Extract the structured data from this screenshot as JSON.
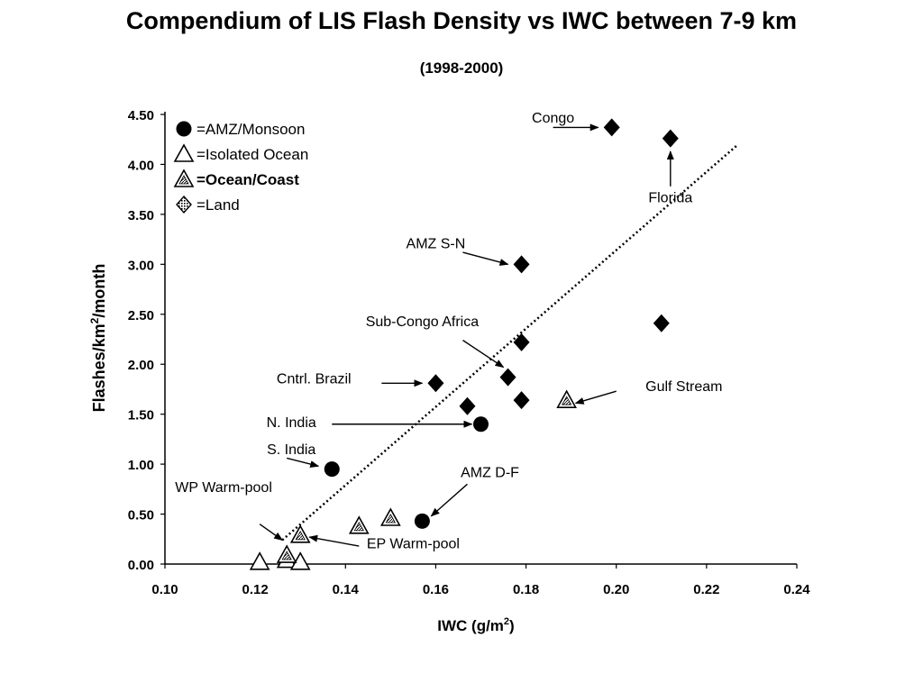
{
  "title": "Compendium of LIS Flash Density vs IWC between 7-9 km",
  "subtitle": "(1998-2000)",
  "chart_data": {
    "type": "scatter",
    "xlabel_main": "IWC (g/m",
    "xlabel_sup": "2",
    "xlabel_tail": ")",
    "ylabel_main": "Flashes/km",
    "ylabel_sup": "2",
    "ylabel_tail": "/month",
    "xlim": [
      0.1,
      0.24
    ],
    "ylim": [
      0.0,
      4.5
    ],
    "x_ticks": [
      {
        "v": 0.1,
        "label": "0.10"
      },
      {
        "v": 0.12,
        "label": "0.12"
      },
      {
        "v": 0.14,
        "label": "0.14"
      },
      {
        "v": 0.16,
        "label": "0.16"
      },
      {
        "v": 0.18,
        "label": "0.18"
      },
      {
        "v": 0.2,
        "label": "0.20"
      },
      {
        "v": 0.22,
        "label": "0.22"
      },
      {
        "v": 0.24,
        "label": "0.24"
      }
    ],
    "y_ticks": [
      {
        "v": 0.0,
        "label": "0.00"
      },
      {
        "v": 0.5,
        "label": "0.50"
      },
      {
        "v": 1.0,
        "label": "1.00"
      },
      {
        "v": 1.5,
        "label": "1.50"
      },
      {
        "v": 2.0,
        "label": "2.00"
      },
      {
        "v": 2.5,
        "label": "2.50"
      },
      {
        "v": 3.0,
        "label": "3.00"
      },
      {
        "v": 3.5,
        "label": "3.50"
      },
      {
        "v": 4.0,
        "label": "4.00"
      },
      {
        "v": 4.5,
        "label": "4.50"
      }
    ],
    "grid": false,
    "legend_position": "top-left",
    "series": [
      {
        "name": "=AMZ/Monsoon",
        "marker": "circle",
        "points": [
          [
            0.17,
            1.4
          ],
          [
            0.137,
            0.95
          ],
          [
            0.157,
            0.43
          ]
        ]
      },
      {
        "name": "=Isolated Ocean",
        "marker": "triangle-open",
        "points": [
          [
            0.121,
            0.02
          ],
          [
            0.127,
            0.04
          ],
          [
            0.13,
            0.02
          ]
        ]
      },
      {
        "name": "=Ocean/Coast",
        "marker": "triangle-hatched",
        "points": [
          [
            0.13,
            0.29
          ],
          [
            0.143,
            0.38
          ],
          [
            0.15,
            0.46
          ],
          [
            0.189,
            1.64
          ],
          [
            0.127,
            0.09
          ]
        ]
      },
      {
        "name": "=Land",
        "marker": "diamond",
        "points": [
          [
            0.199,
            4.37
          ],
          [
            0.212,
            4.26
          ],
          [
            0.179,
            3.0
          ],
          [
            0.21,
            2.41
          ],
          [
            0.179,
            2.22
          ],
          [
            0.176,
            1.87
          ],
          [
            0.16,
            1.81
          ],
          [
            0.167,
            1.58
          ],
          [
            0.179,
            1.64
          ]
        ]
      }
    ],
    "trendline": {
      "x": [
        0.126,
        0.227
      ],
      "y": [
        0.24,
        4.2
      ]
    },
    "annotations": [
      {
        "text": "Congo",
        "tx": 0.186,
        "ty": 4.42,
        "ax": 0.196,
        "ay": 4.37,
        "ex": 0.186,
        "ey": 4.37
      },
      {
        "text": "Florida",
        "tx": 0.212,
        "ty": 3.62,
        "ax": 0.212,
        "ay": 4.13,
        "ex": 0.212,
        "ey": 3.78
      },
      {
        "text": "AMZ S-N",
        "tx": 0.16,
        "ty": 3.16,
        "ax": 0.176,
        "ay": 3.0,
        "ex": 0.166,
        "ey": 3.12
      },
      {
        "text": "Sub-Congo Africa",
        "tx": 0.157,
        "ty": 2.38,
        "ax": 0.175,
        "ay": 1.97,
        "ex": 0.166,
        "ey": 2.24
      },
      {
        "text": "Cntrl. Brazil",
        "tx": 0.133,
        "ty": 1.81,
        "ax": 0.157,
        "ay": 1.81,
        "ex": 0.148,
        "ey": 1.81
      },
      {
        "text": "Gulf Stream",
        "tx": 0.215,
        "ty": 1.73,
        "ax": 0.191,
        "ay": 1.61,
        "ex": 0.2,
        "ey": 1.73
      },
      {
        "text": "N. India",
        "tx": 0.128,
        "ty": 1.37,
        "ax": 0.168,
        "ay": 1.4,
        "ex": 0.137,
        "ey": 1.4
      },
      {
        "text": "S. India",
        "tx": 0.128,
        "ty": 1.1,
        "ax": 0.134,
        "ay": 0.98,
        "ex": 0.127,
        "ey": 1.06
      },
      {
        "text": "AMZ D-F",
        "tx": 0.172,
        "ty": 0.87,
        "ax": 0.159,
        "ay": 0.48,
        "ex": 0.167,
        "ey": 0.8
      },
      {
        "text": "WP Warm-pool",
        "tx": 0.113,
        "ty": 0.72,
        "ax": 0.126,
        "ay": 0.24,
        "ex": 0.121,
        "ey": 0.4
      },
      {
        "text": "EP Warm-pool",
        "tx": 0.155,
        "ty": 0.16,
        "ax": 0.132,
        "ay": 0.27,
        "ex": 0.143,
        "ey": 0.18
      }
    ]
  }
}
